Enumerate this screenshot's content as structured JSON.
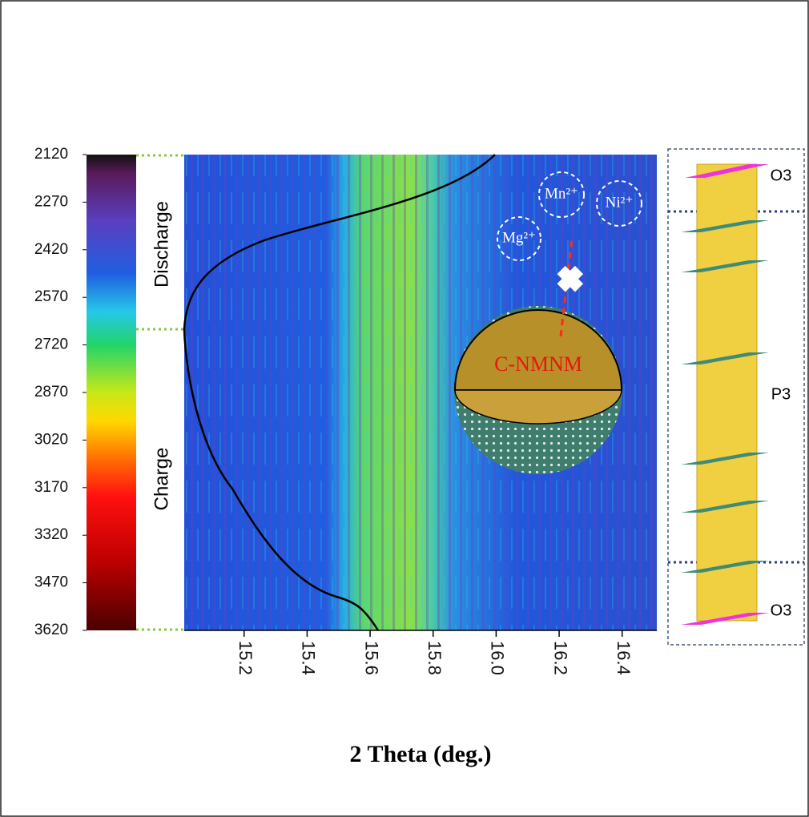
{
  "chart_data": {
    "type": "heatmap",
    "xlabel": "2 Theta (deg.)",
    "xlim": [
      15.01,
      16.51
    ],
    "xticks": [
      15.2,
      15.4,
      15.6,
      15.8,
      {
        "value": 16,
        "label": "16.0"
      },
      16.2,
      16.4
    ],
    "ylim": [
      2120,
      3620
    ],
    "yticks": [
      2120,
      2270,
      2420,
      2570,
      2720,
      2870,
      3020,
      3170,
      3320,
      3470,
      3620
    ],
    "annotations": {
      "discharge": "Discharge",
      "charge": "Charge",
      "particle": "C-NMNM",
      "ions": [
        "Mg²⁺",
        "Mn²⁺",
        "Ni²⁺"
      ]
    },
    "structure_labels": [
      "O3",
      "P3",
      "O3"
    ]
  }
}
